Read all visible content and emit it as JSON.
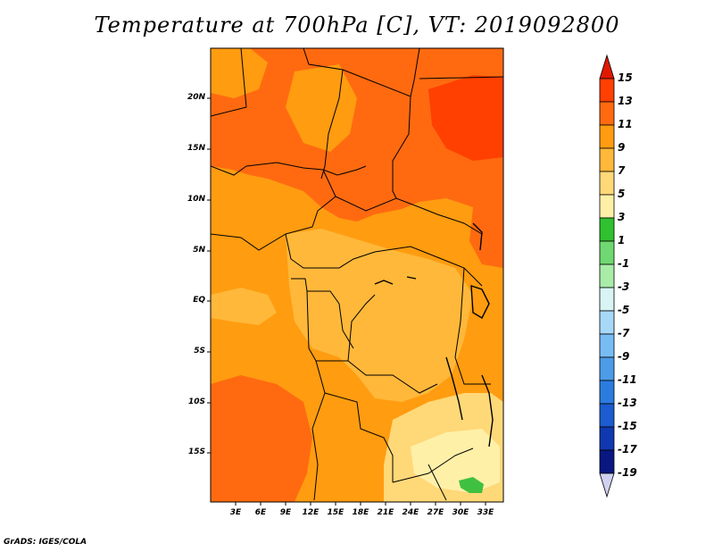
{
  "title": "Temperature at 700hPa [C], VT: 2019092800",
  "credit": "GrADS: IGES/COLA",
  "map": {
    "lat_labels": [
      "20N",
      "15N",
      "10N",
      "5N",
      "EQ",
      "5S",
      "10S",
      "15S"
    ],
    "lon_labels": [
      "3E",
      "6E",
      "9E",
      "12E",
      "15E",
      "18E",
      "21E",
      "24E",
      "27E",
      "30E",
      "33E"
    ],
    "fill_colors": {
      "c13": "#ff4000",
      "c11": "#ff6a10",
      "c9": "#ff9c10",
      "c7": "#ffb83a",
      "c5": "#ffd878",
      "c3": "#fff0a8",
      "c1": "#40c040"
    }
  },
  "colorbar": {
    "labels": [
      "15",
      "13",
      "11",
      "9",
      "7",
      "5",
      "3",
      "1",
      "-1",
      "-3",
      "-5",
      "-7",
      "-9",
      "-11",
      "-13",
      "-15",
      "-17",
      "-19"
    ],
    "colors": [
      "#e01800",
      "#ff4000",
      "#ff6a10",
      "#ff9c10",
      "#ffb83a",
      "#ffd878",
      "#fff0a8",
      "#30c030",
      "#70d870",
      "#a8eca8",
      "#d8f4f4",
      "#a8d8f8",
      "#78bcf4",
      "#4c9ce8",
      "#2c7ce0",
      "#1c5cd0",
      "#1038b0",
      "#081880",
      "#d0d0f0"
    ]
  }
}
